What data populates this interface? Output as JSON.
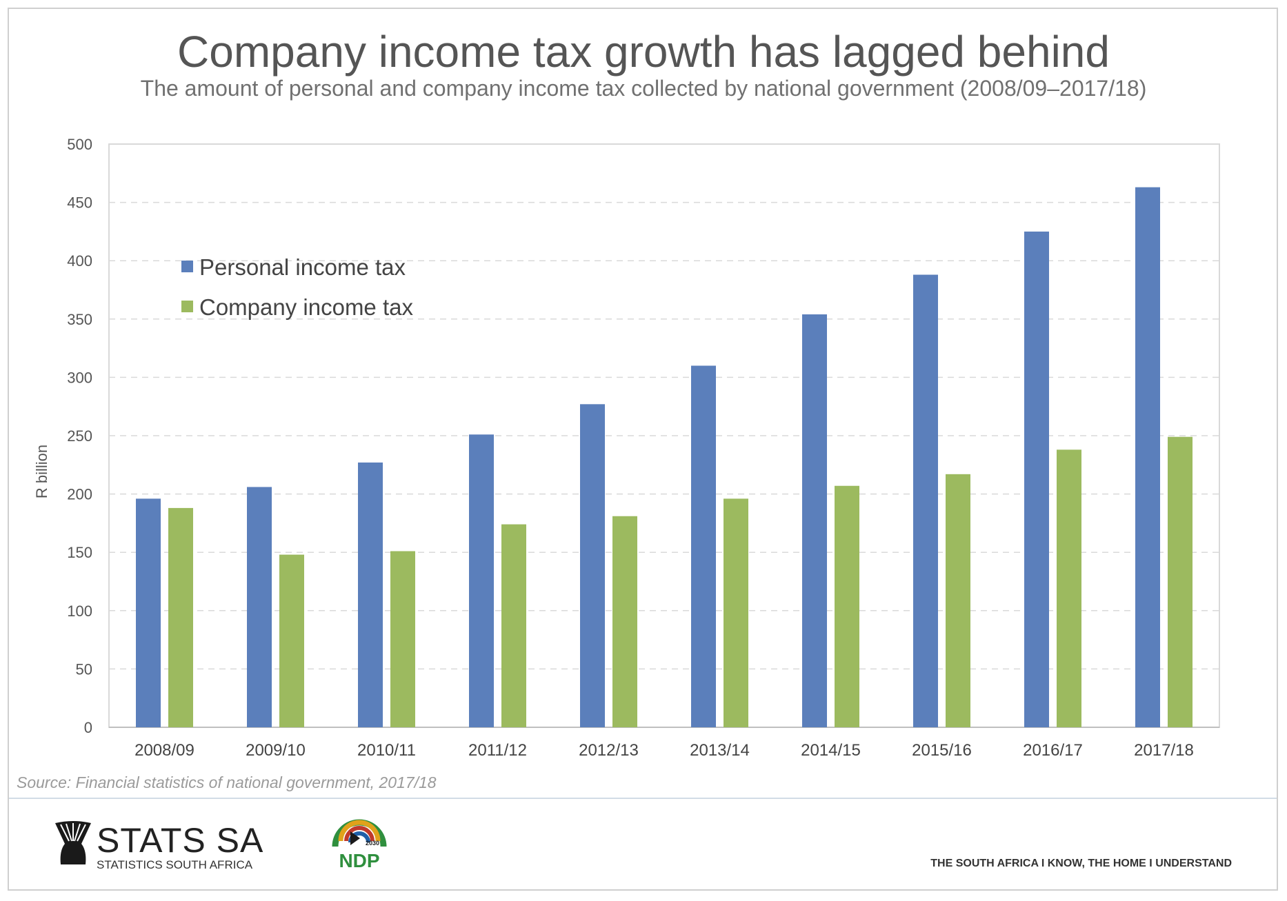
{
  "header": {
    "title": "Company income tax growth has lagged behind",
    "subtitle": "The amount of personal and company income tax collected by national government (2008/09–2017/18)"
  },
  "footer": {
    "source": "Source: Financial statistics of national government, 2017/18",
    "brand_name": "STATS SA",
    "brand_sub": "STATISTICS SOUTH AFRICA",
    "ndp_logo": "NDP",
    "ndp_year": "2030",
    "tagline": "THE SOUTH AFRICA I KNOW, THE HOME I UNDERSTAND"
  },
  "chart_data": {
    "type": "bar",
    "title": "Company income tax growth has lagged behind",
    "subtitle": "The amount of personal and company income tax collected by national government (2008/09–2017/18)",
    "xlabel": "",
    "ylabel": "R billion",
    "ylim": [
      0,
      500
    ],
    "yticks": [
      0,
      50,
      100,
      150,
      200,
      250,
      300,
      350,
      400,
      450,
      500
    ],
    "grid": true,
    "legend": "top-left",
    "categories": [
      "2008/09",
      "2009/10",
      "2010/11",
      "2011/12",
      "2012/13",
      "2013/14",
      "2014/15",
      "2015/16",
      "2016/17",
      "2017/18"
    ],
    "series": [
      {
        "name": "Personal income tax",
        "color": "#5b7fbb",
        "values": [
          196,
          206,
          227,
          251,
          277,
          310,
          354,
          388,
          425,
          463
        ]
      },
      {
        "name": "Company income tax",
        "color": "#9cba5f",
        "values": [
          188,
          148,
          151,
          174,
          181,
          196,
          207,
          217,
          238,
          249
        ]
      }
    ]
  }
}
